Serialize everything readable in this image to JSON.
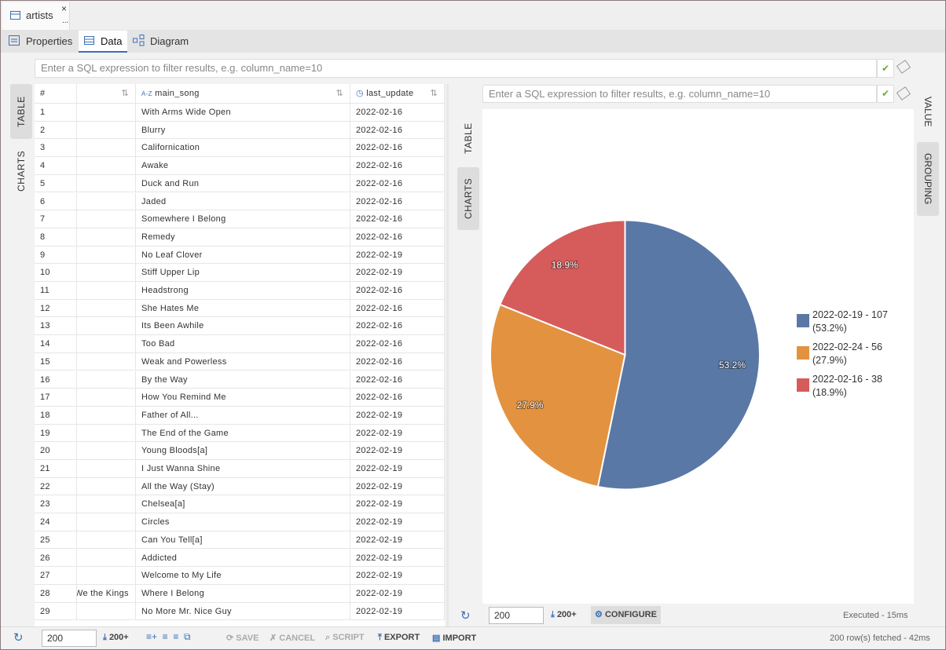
{
  "tab": {
    "title": "artists",
    "close": "×",
    "more": "..."
  },
  "subtabs": [
    "Properties",
    "Data",
    "Diagram"
  ],
  "filter_placeholder": "Enter a SQL expression to filter results, e.g. column_name=10",
  "left_side_tabs": [
    "TABLE",
    "CHARTS"
  ],
  "table": {
    "columns": [
      "#",
      "main_song",
      "last_update"
    ],
    "type_badge": "A-Z",
    "rows": [
      {
        "n": 1,
        "song": "With Arms Wide Open",
        "date": "2022-02-16"
      },
      {
        "n": 2,
        "song": "Blurry",
        "date": "2022-02-16"
      },
      {
        "n": 3,
        "song": "Californication",
        "date": "2022-02-16"
      },
      {
        "n": 4,
        "song": "Awake",
        "date": "2022-02-16"
      },
      {
        "n": 5,
        "song": "Duck and Run",
        "date": "2022-02-16"
      },
      {
        "n": 6,
        "song": "Jaded",
        "date": "2022-02-16"
      },
      {
        "n": 7,
        "song": "Somewhere I Belong",
        "date": "2022-02-16"
      },
      {
        "n": 8,
        "song": "Remedy",
        "date": "2022-02-16"
      },
      {
        "n": 9,
        "song": "No Leaf Clover",
        "date": "2022-02-19"
      },
      {
        "n": 10,
        "song": "Stiff Upper Lip",
        "date": "2022-02-19"
      },
      {
        "n": 11,
        "song": "Headstrong",
        "date": "2022-02-16"
      },
      {
        "n": 12,
        "song": "She Hates Me",
        "date": "2022-02-16"
      },
      {
        "n": 13,
        "song": "Its Been Awhile",
        "date": "2022-02-16"
      },
      {
        "n": 14,
        "song": "Too Bad",
        "date": "2022-02-16"
      },
      {
        "n": 15,
        "song": "Weak and Powerless",
        "date": "2022-02-16"
      },
      {
        "n": 16,
        "song": "By the Way",
        "date": "2022-02-16"
      },
      {
        "n": 17,
        "song": "How You Remind Me",
        "date": "2022-02-16"
      },
      {
        "n": 18,
        "song": "Father of All...",
        "date": "2022-02-19"
      },
      {
        "n": 19,
        "song": "The End of the Game",
        "date": "2022-02-19"
      },
      {
        "n": 20,
        "song": "Young Bloods[a]",
        "date": "2022-02-19"
      },
      {
        "n": 21,
        "song": "I Just Wanna Shine",
        "date": "2022-02-19"
      },
      {
        "n": 22,
        "song": "All the Way (Stay)",
        "date": "2022-02-19"
      },
      {
        "n": 23,
        "song": "Chelsea[a]",
        "date": "2022-02-19"
      },
      {
        "n": 24,
        "song": "Circles",
        "date": "2022-02-19"
      },
      {
        "n": 25,
        "song": "Can You Tell[a]",
        "date": "2022-02-19"
      },
      {
        "n": 26,
        "song": "Addicted",
        "date": "2022-02-19"
      },
      {
        "n": 27,
        "song": "Welcome to My Life",
        "date": "2022-02-19"
      },
      {
        "n": 28,
        "artist": "We the Kings",
        "song": "Where I Belong",
        "date": "2022-02-19"
      },
      {
        "n": 29,
        "song": "No More Mr. Nice Guy",
        "date": "2022-02-19"
      }
    ]
  },
  "chart_panel": {
    "left_tabs": [
      "TABLE",
      "CHARTS"
    ],
    "right_tabs": [
      "VALUE",
      "GROUPING"
    ],
    "toolbar": {
      "fetch_size": "200",
      "fetch_more": "200+",
      "configure": "CONFIGURE",
      "status": "Executed - 15ms"
    }
  },
  "chart_data": {
    "type": "pie",
    "categories": [
      "2022-02-19 - 107 (53.2%)",
      "2022-02-24 - 56 (27.9%)",
      "2022-02-16 - 38 (18.9%)"
    ],
    "values": [
      107,
      56,
      38
    ],
    "value_labels": [
      "53.2%",
      "27.9%",
      "18.9%"
    ],
    "colors": [
      "#5a78a6",
      "#e39240",
      "#d65b5b"
    ]
  },
  "bottom_toolbar": {
    "fetch_size": "200",
    "fetch_more": "200+",
    "actions": [
      "SAVE",
      "CANCEL",
      "SCRIPT",
      "EXPORT",
      "IMPORT"
    ],
    "status": "200 row(s) fetched - 42ms"
  }
}
